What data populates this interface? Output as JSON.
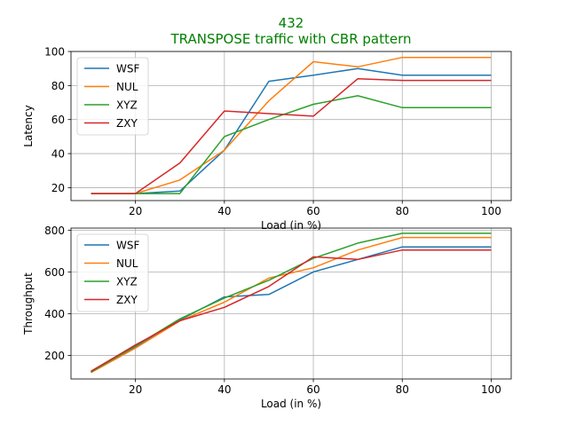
{
  "figure": {
    "title": "432",
    "subtitle": "TRANSPOSE traffic with CBR pattern",
    "title_color": "#008000"
  },
  "chart_data": [
    {
      "type": "line",
      "xlabel": "Load (in %)",
      "ylabel": "Latency",
      "xlim": [
        5.5,
        104.5
      ],
      "ylim": [
        12.4,
        100
      ],
      "xticks": [
        20,
        40,
        60,
        80,
        100
      ],
      "yticks": [
        20,
        40,
        60,
        80,
        100
      ],
      "grid": true,
      "legend": "top-left",
      "series": [
        {
          "name": "WSF",
          "color": "#1f77b4",
          "x": [
            10,
            20,
            30,
            40,
            50,
            60,
            70,
            80,
            90,
            100
          ],
          "y": [
            16.5,
            16.5,
            18,
            42,
            82.5,
            86,
            90,
            86,
            86,
            86
          ]
        },
        {
          "name": "NUL",
          "color": "#ff7f0e",
          "x": [
            10,
            20,
            30,
            40,
            50,
            60,
            70,
            80,
            90,
            100
          ],
          "y": [
            16.5,
            16.5,
            24.5,
            42,
            71,
            94,
            91,
            96.5,
            96.5,
            96.5
          ]
        },
        {
          "name": "XYZ",
          "color": "#2ca02c",
          "x": [
            10,
            20,
            30,
            40,
            50,
            60,
            70,
            80,
            90,
            100
          ],
          "y": [
            16.5,
            16.5,
            16.5,
            50,
            60,
            69,
            74,
            67,
            67,
            67
          ]
        },
        {
          "name": "ZXY",
          "color": "#d62728",
          "x": [
            10,
            20,
            30,
            40,
            50,
            60,
            70,
            80,
            90,
            100
          ],
          "y": [
            16.5,
            16.5,
            34.5,
            65,
            63.5,
            62,
            84,
            83,
            83,
            83
          ]
        }
      ]
    },
    {
      "type": "line",
      "xlabel": "Load (in %)",
      "ylabel": "Throughput",
      "xlim": [
        5.5,
        104.5
      ],
      "ylim": [
        87,
        810
      ],
      "xticks": [
        20,
        40,
        60,
        80,
        100
      ],
      "yticks": [
        200,
        400,
        600,
        800
      ],
      "grid": true,
      "legend": "top-left",
      "series": [
        {
          "name": "WSF",
          "color": "#1f77b4",
          "x": [
            10,
            20,
            30,
            40,
            50,
            60,
            70,
            80,
            90,
            100
          ],
          "y": [
            120,
            240,
            370,
            480,
            492,
            600,
            660,
            720,
            720,
            720
          ]
        },
        {
          "name": "NUL",
          "color": "#ff7f0e",
          "x": [
            10,
            20,
            30,
            40,
            50,
            60,
            70,
            80,
            90,
            100
          ],
          "y": [
            117,
            235,
            365,
            455,
            570,
            620,
            705,
            765,
            765,
            765
          ]
        },
        {
          "name": "XYZ",
          "color": "#2ca02c",
          "x": [
            10,
            20,
            30,
            40,
            50,
            60,
            70,
            80,
            90,
            100
          ],
          "y": [
            120,
            245,
            375,
            475,
            560,
            665,
            738,
            785,
            785,
            785
          ]
        },
        {
          "name": "ZXY",
          "color": "#d62728",
          "x": [
            10,
            20,
            30,
            40,
            50,
            60,
            70,
            80,
            90,
            100
          ],
          "y": [
            124,
            250,
            366,
            430,
            530,
            672,
            660,
            705,
            705,
            705
          ]
        }
      ]
    }
  ]
}
